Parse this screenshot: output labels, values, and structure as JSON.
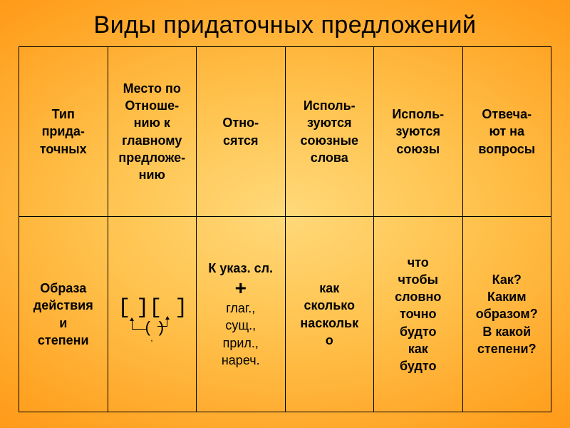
{
  "title": {
    "text": "Виды придаточных предложений",
    "fontsize": 34
  },
  "table": {
    "border_color": "#000000",
    "header_fontsize": 18,
    "data_fontsize": 18,
    "columns": [
      {
        "key": "type",
        "header": "Тип\nприда-\nточных"
      },
      {
        "key": "place",
        "header": "Место по\nОтноше-\nнию к\nглавному\nпредложе-\nнию"
      },
      {
        "key": "otno",
        "header": "Отно-\nсятся"
      },
      {
        "key": "allied",
        "header": "Исполь-\nзуются\nсоюзные\nслова"
      },
      {
        "key": "unions",
        "header": "Исполь-\nзуются\nсоюзы"
      },
      {
        "key": "questions",
        "header": "Отвеча-\nют на\nвопросы"
      }
    ],
    "row": {
      "type": "Образа\nдействия\nи\nстепени",
      "otno": {
        "line1": "К указ. сл.",
        "plus": "+",
        "line2": "глаг.,\nсущ.,\nприл.,\nнареч."
      },
      "allied": "как\nсколько\nнаскольк\nо",
      "unions": "что\nчтобы\nсловно\nточно\nбудто\nкак\nбудто",
      "questions": "Как?\nКаким\nобразом?\nВ какой\nстепени?"
    }
  },
  "colors": {
    "text": "#000000",
    "bg_inner": "#ffd97a",
    "bg_mid": "#ffb042",
    "bg_outer": "#ff7a00"
  }
}
